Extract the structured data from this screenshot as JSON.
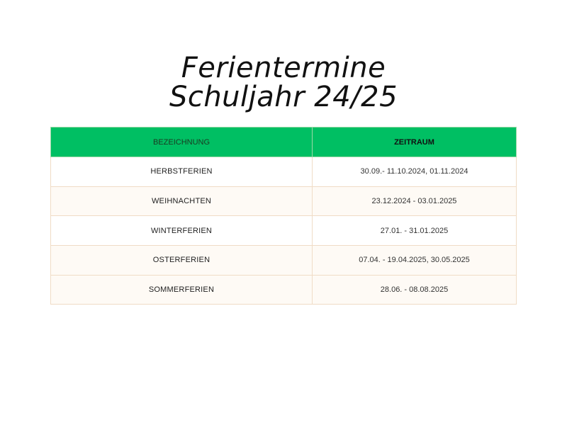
{
  "title": {
    "line1": "Ferientermine",
    "line2": "Schuljahr 24/25"
  },
  "table": {
    "header_color": "#00bf63",
    "columns": [
      "BEZEICHNUNG",
      "ZEITRAUM"
    ],
    "rows": [
      {
        "name": "HERBSTFERIEN",
        "range": "30.09.- 11.10.2024, 01.11.2024",
        "shaded": false
      },
      {
        "name": "WEIHNACHTEN",
        "range": "23.12.2024 - 03.01.2025",
        "shaded": true
      },
      {
        "name": "WINTERFERIEN",
        "range": "27.01. - 31.01.2025",
        "shaded": false
      },
      {
        "name": "OSTERFERIEN",
        "range": "07.04. - 19.04.2025, 30.05.2025",
        "shaded": true
      },
      {
        "name": "SOMMERFERIEN",
        "range": "28.06. - 08.08.2025",
        "shaded": true
      }
    ]
  }
}
